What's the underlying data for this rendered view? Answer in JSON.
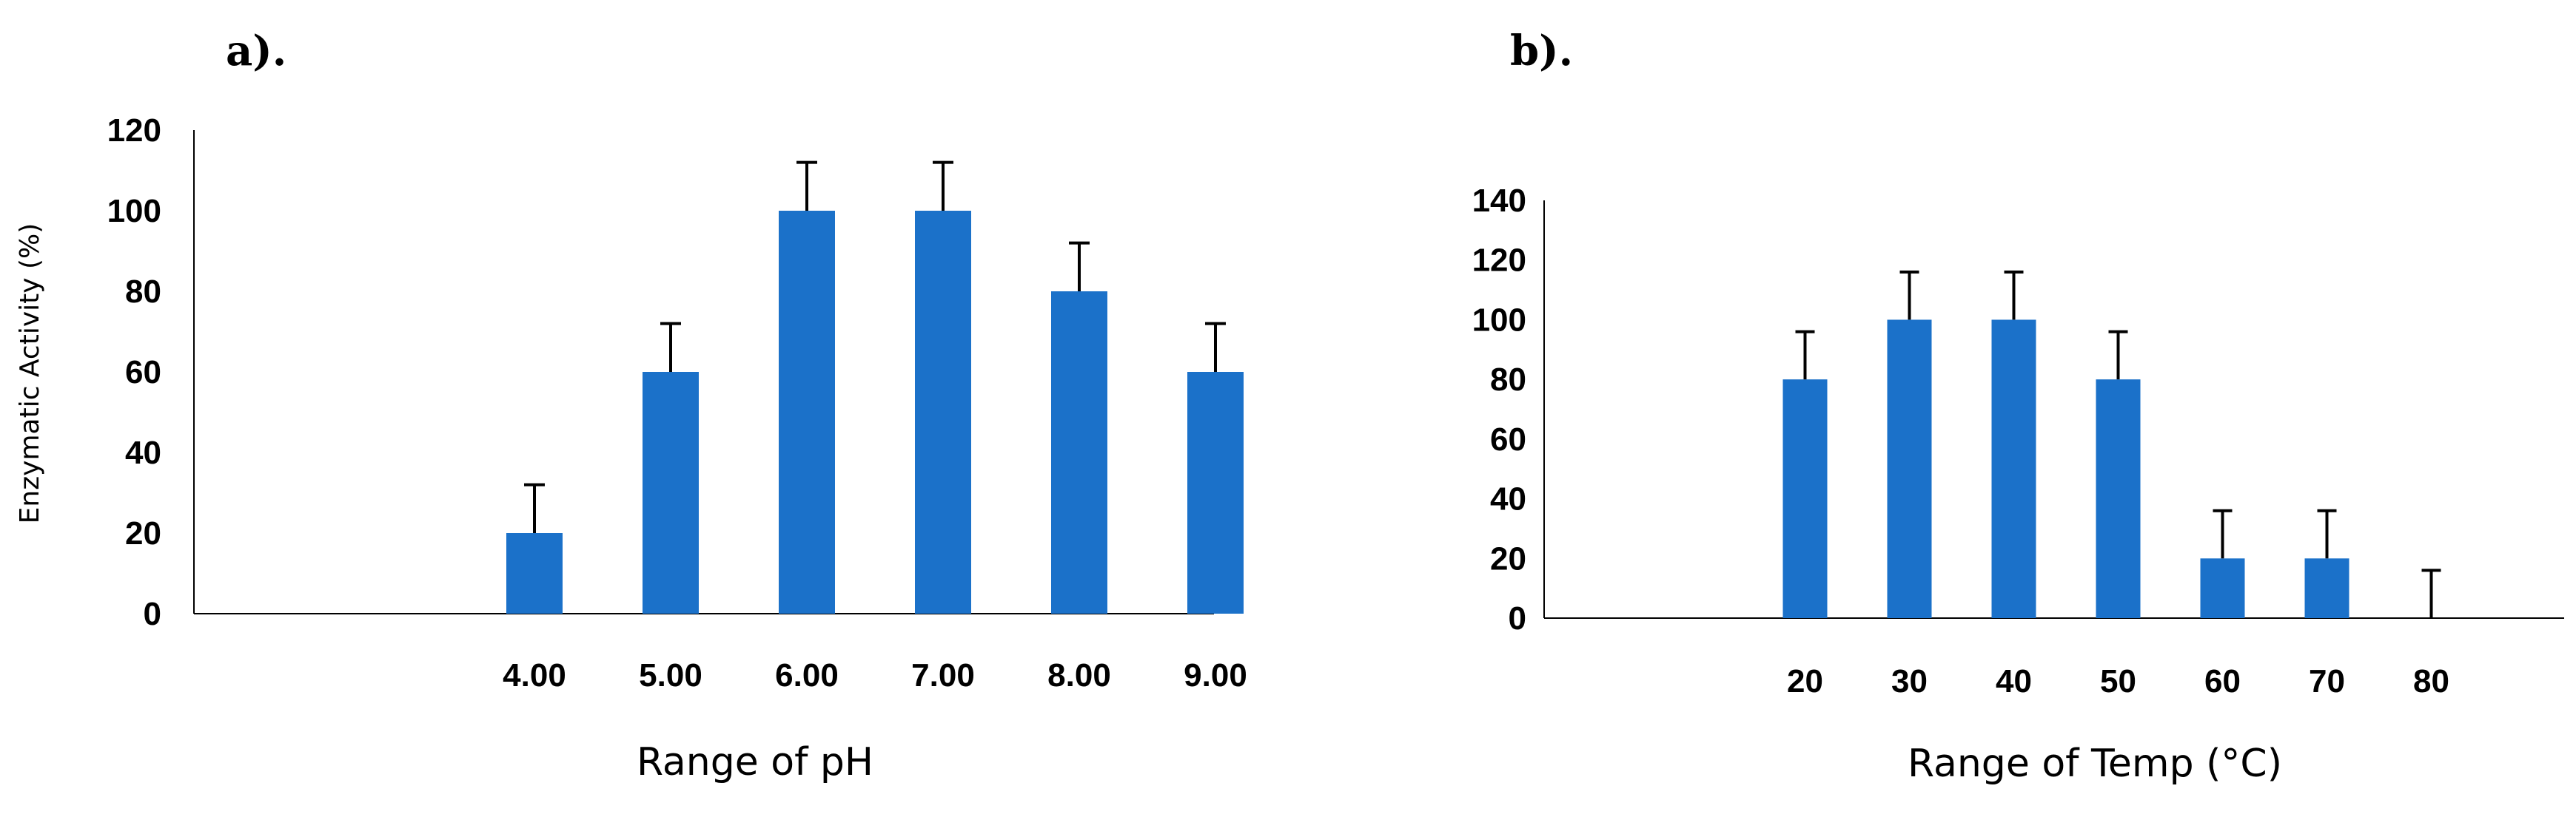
{
  "chart_data": [
    {
      "type": "bar",
      "panel_label": "a).",
      "title": "",
      "xlabel": "Range of pH",
      "ylabel": "Enzymatic Activity (%)",
      "categories": [
        "",
        "",
        "4.00",
        "5.00",
        "6.00",
        "7.00",
        "8.00",
        "9.00"
      ],
      "values": [
        null,
        null,
        20,
        60,
        100,
        100,
        80,
        60
      ],
      "error": [
        null,
        null,
        12,
        12,
        12,
        12,
        12,
        12
      ],
      "ylim": [
        0,
        120
      ],
      "yticks": [
        0,
        20,
        40,
        60,
        80,
        100,
        120
      ],
      "grid": false,
      "bar_color": "#1b71c9"
    },
    {
      "type": "bar",
      "panel_label": "b).",
      "title": "",
      "xlabel": "Range of Temp (°C)",
      "ylabel": "",
      "categories": [
        "",
        "",
        "20",
        "30",
        "40",
        "50",
        "60",
        "70",
        "80"
      ],
      "values": [
        null,
        null,
        80,
        100,
        100,
        80,
        20,
        20,
        0
      ],
      "error": [
        null,
        null,
        16,
        16,
        16,
        16,
        16,
        16,
        16
      ],
      "ylim": [
        0,
        140
      ],
      "yticks": [
        0,
        20,
        40,
        60,
        80,
        100,
        120,
        140
      ],
      "grid": false,
      "bar_color": "#1b71c9"
    }
  ]
}
